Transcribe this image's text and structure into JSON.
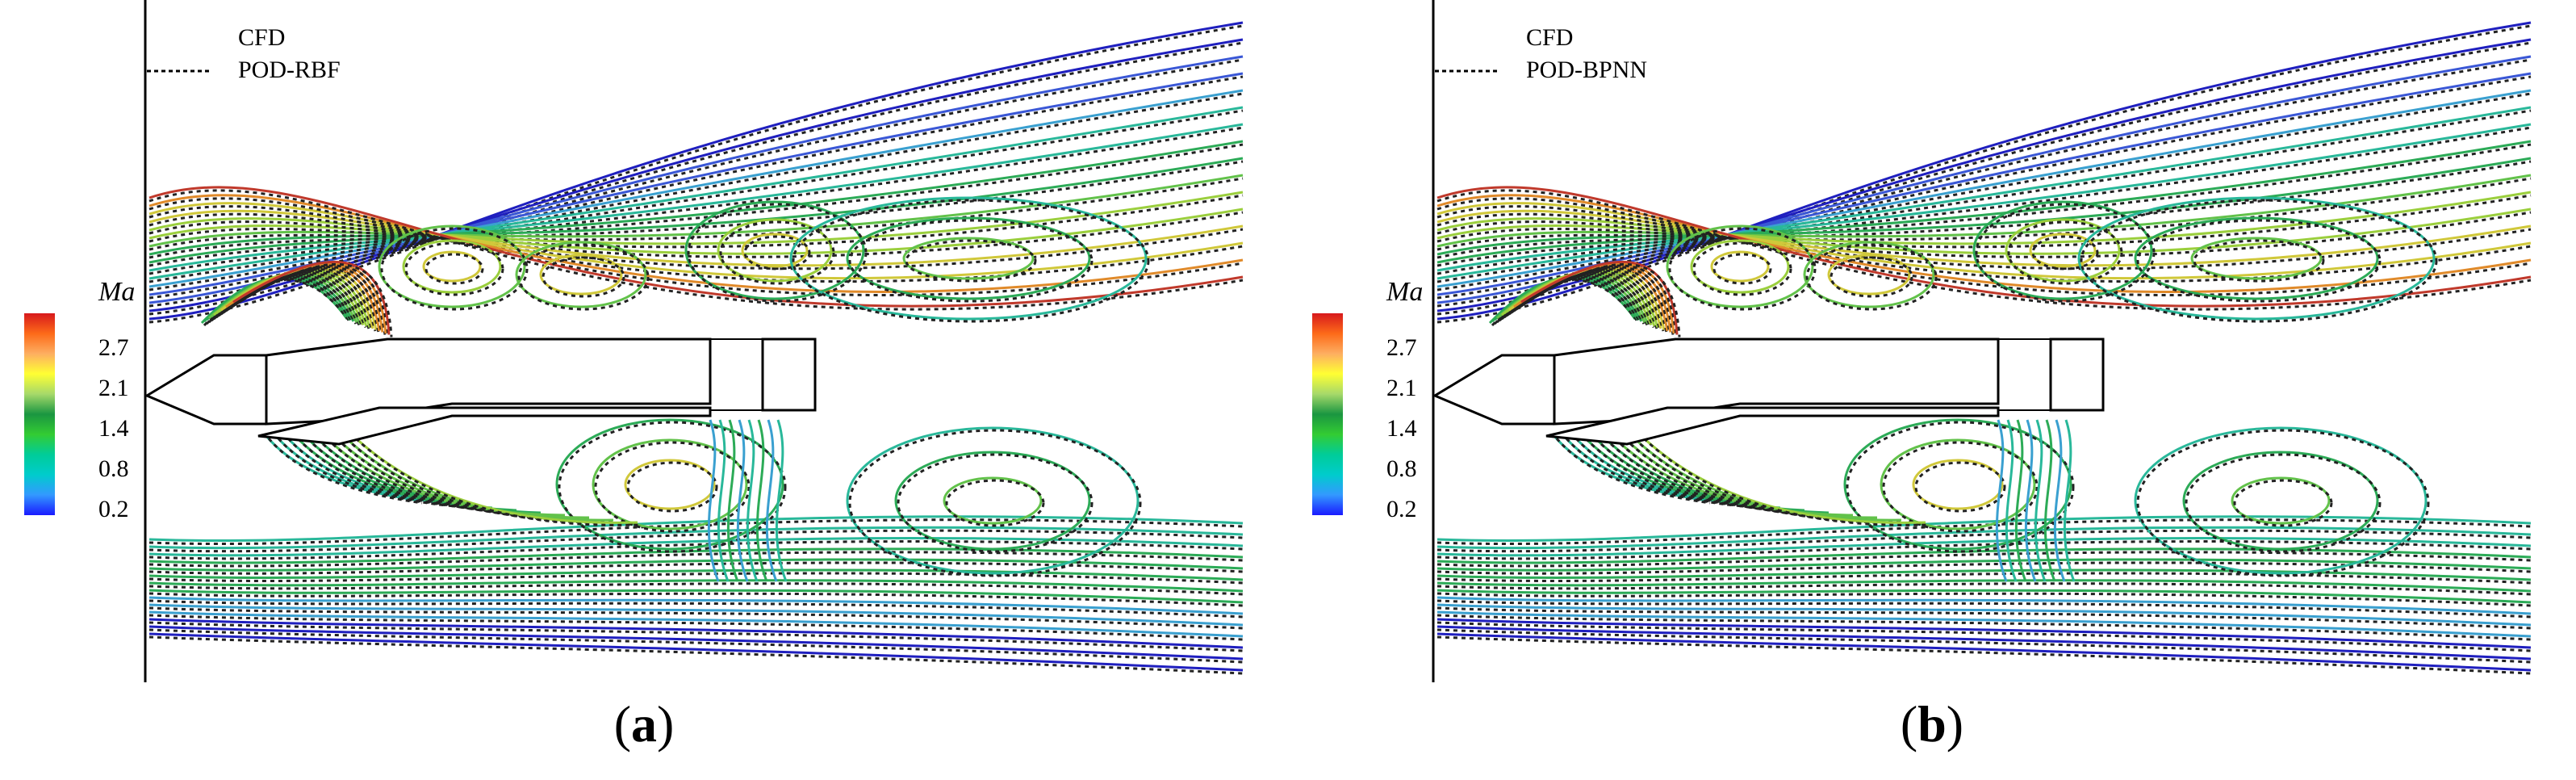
{
  "panels": [
    {
      "id": "a",
      "legend": {
        "solid_label": "CFD",
        "dashed_label": "POD-RBF"
      },
      "colorbar": {
        "title": "Ma",
        "ticks": [
          "2.7",
          "2.1",
          "1.4",
          "0.8",
          "0.2"
        ]
      },
      "caption_letter": "a"
    },
    {
      "id": "b",
      "legend": {
        "solid_label": "CFD",
        "dashed_label": "POD-BPNN"
      },
      "colorbar": {
        "title": "Ma",
        "ticks": [
          "2.7",
          "2.1",
          "1.4",
          "0.8",
          "0.2"
        ]
      },
      "caption_letter": "b"
    }
  ],
  "colors": {
    "colorbar_stops": [
      "#d7191c",
      "#fd6a19",
      "#fdae61",
      "#ffff33",
      "#a6d96a",
      "#1a9641",
      "#33cc33",
      "#00cc99",
      "#00cccc",
      "#3399ff",
      "#1a1aff"
    ],
    "contour_palette": [
      "#1f1fbf",
      "#3a57d6",
      "#3aa0d0",
      "#29b89a",
      "#2cab57",
      "#62c24a",
      "#9bcf3d",
      "#d0c83a",
      "#e08a2a",
      "#c0392b"
    ],
    "dashed_line": "#222222"
  }
}
